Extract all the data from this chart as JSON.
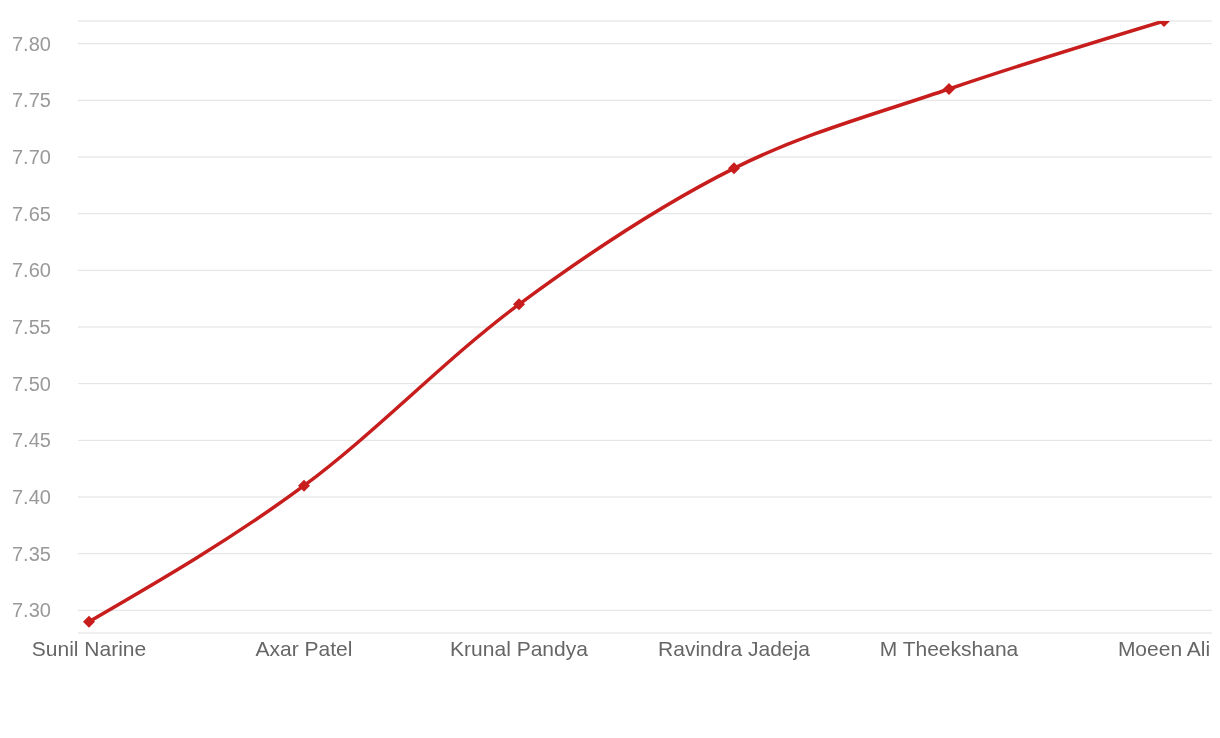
{
  "chart_data": {
    "type": "line",
    "categories": [
      "Sunil Narine",
      "Axar Patel",
      "Krunal Pandya",
      "Ravindra Jadeja",
      "M Theekshana",
      "Moeen Ali"
    ],
    "series": [
      {
        "color": "#c71e1d",
        "values": [
          7.29,
          7.41,
          7.57,
          7.69,
          7.76,
          7.82
        ]
      }
    ],
    "ylim": [
      7.28,
      7.82
    ],
    "yticks": [
      {
        "value": 7.3,
        "label": "7.30"
      },
      {
        "value": 7.35,
        "label": "7.35"
      },
      {
        "value": 7.4,
        "label": "7.40"
      },
      {
        "value": 7.45,
        "label": "7.45"
      },
      {
        "value": 7.5,
        "label": "7.50"
      },
      {
        "value": 7.55,
        "label": "7.55"
      },
      {
        "value": 7.6,
        "label": "7.60"
      },
      {
        "value": 7.65,
        "label": "7.65"
      },
      {
        "value": 7.7,
        "label": "7.70"
      },
      {
        "value": 7.75,
        "label": "7.75"
      },
      {
        "value": 7.8,
        "label": "7.80"
      }
    ],
    "grid": "y",
    "marker": "diamond",
    "line_style": "solid"
  }
}
